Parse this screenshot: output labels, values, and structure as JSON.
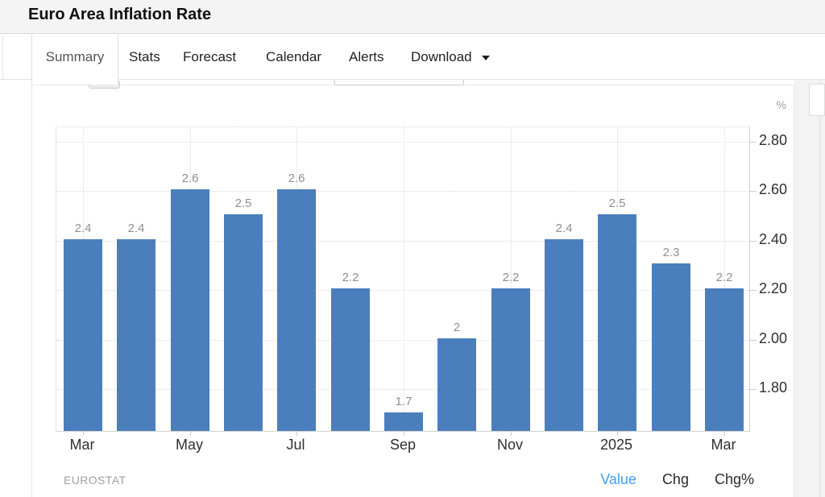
{
  "header": {
    "title": "Euro Area Inflation Rate"
  },
  "tabs": {
    "items": [
      {
        "label": "Summary",
        "active": true
      },
      {
        "label": "Stats",
        "active": false
      },
      {
        "label": "Forecast",
        "active": false
      },
      {
        "label": "Calendar",
        "active": false
      },
      {
        "label": "Alerts",
        "active": false
      },
      {
        "label": "Download",
        "active": false,
        "has_dropdown": true
      }
    ]
  },
  "chart_data": {
    "type": "bar",
    "title": "Euro Area Inflation Rate",
    "unit_label": "%",
    "values": [
      2.4,
      2.4,
      2.6,
      2.5,
      2.6,
      2.2,
      1.7,
      2.0,
      2.2,
      2.4,
      2.5,
      2.3,
      2.2
    ],
    "value_labels": [
      "2.4",
      "2.4",
      "2.6",
      "2.5",
      "2.6",
      "2.2",
      "1.7",
      "2",
      "2.2",
      "2.4",
      "2.5",
      "2.3",
      "2.2"
    ],
    "x_ticks": [
      {
        "index": 0,
        "label": "Mar"
      },
      {
        "index": 2,
        "label": "May"
      },
      {
        "index": 4,
        "label": "Jul"
      },
      {
        "index": 6,
        "label": "Sep"
      },
      {
        "index": 8,
        "label": "Nov"
      },
      {
        "index": 10,
        "label": "2025"
      },
      {
        "index": 12,
        "label": "Mar"
      }
    ],
    "y_ticks": [
      {
        "value": 1.8,
        "label": "1.80"
      },
      {
        "value": 2.0,
        "label": "2.00"
      },
      {
        "value": 2.2,
        "label": "2.20"
      },
      {
        "value": 2.4,
        "label": "2.40"
      },
      {
        "value": 2.6,
        "label": "2.60"
      },
      {
        "value": 2.8,
        "label": "2.80"
      }
    ],
    "ylim": [
      1.625,
      2.857
    ],
    "grid": "dotted",
    "legend_position": "bottom-right",
    "bar_color": "#4b7ebc",
    "label_color": "#8f8f8f"
  },
  "footer": {
    "source": "EUROSTAT",
    "legend": [
      {
        "label": "Value",
        "active": true,
        "color": "#3f9ef3"
      },
      {
        "label": "Chg",
        "active": false
      },
      {
        "label": "Chg%",
        "active": false
      }
    ]
  }
}
